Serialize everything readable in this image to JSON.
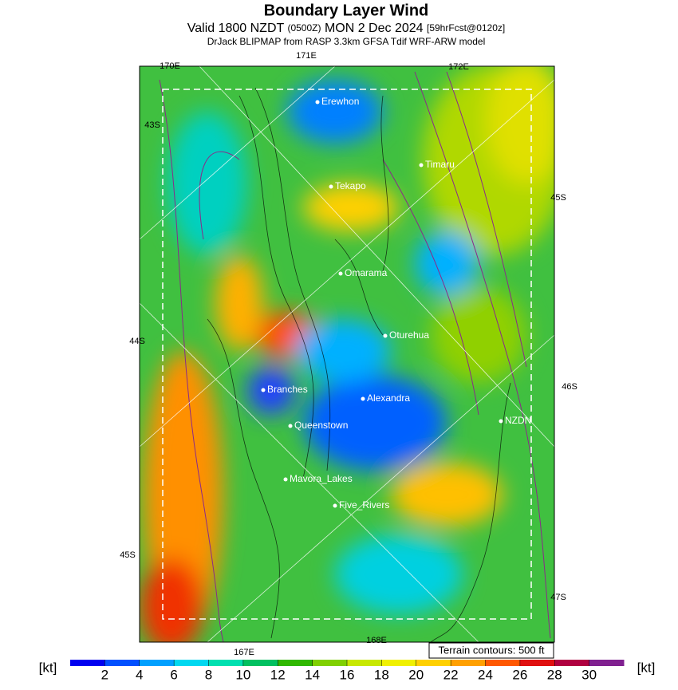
{
  "header": {
    "title": "Boundary Layer Wind",
    "valid_prefix": "Valid 1800 NZDT",
    "utc": "(0500Z)",
    "date": "MON 2 Dec 2024",
    "forecast": "[59hrFcst@0120z]",
    "model": "DrJack BLIPMAP from RASP 3.3km GFSA Tdif WRF-ARW model"
  },
  "places": [
    "Erewhon",
    "Timaru",
    "Tekapo",
    "Omarama",
    "Oturehua",
    "Branches",
    "Alexandra",
    "NZDN",
    "Queenstown",
    "Mavora_Lakes",
    "Five_Rivers"
  ],
  "grid_labels": [
    "170E",
    "171E",
    "172E",
    "43S",
    "45S",
    "44S",
    "46S",
    "45S",
    "47S",
    "167E",
    "168E"
  ],
  "terrain_note": "Terrain contours: 500 ft",
  "colorbar": {
    "unit": "[kt]",
    "lim": [
      0,
      32
    ],
    "ticks": [
      2,
      4,
      6,
      8,
      10,
      12,
      14,
      16,
      18,
      20,
      22,
      24,
      26,
      28,
      30
    ],
    "colors": [
      "#0000f0",
      "#0050ff",
      "#00a0ff",
      "#00d8f0",
      "#00e0b0",
      "#00c060",
      "#30b800",
      "#80d000",
      "#c8e800",
      "#f0f000",
      "#ffd000",
      "#ffa000",
      "#ff5800",
      "#e01010",
      "#b00040",
      "#802090"
    ]
  }
}
